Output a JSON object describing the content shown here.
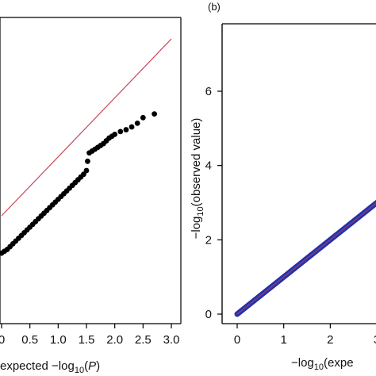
{
  "colors": {
    "background": "#ffffff",
    "axis": "#000000",
    "points_a": "#000000",
    "reference_line_a": "#c8485a",
    "points_b": "#2233aa",
    "line_b": "#8a3a7a"
  },
  "chart_data": [
    {
      "type": "scatter",
      "panel": "(a)",
      "panel_label_visible": false,
      "xlabel_text": "expected −log",
      "xlabel_sub": "10",
      "xlabel_paren": "(",
      "xlabel_var": "P",
      "xlabel_close": ")",
      "ylabel": "",
      "xlim": [
        0,
        3.0
      ],
      "ylim": [
        0,
        3.3
      ],
      "x_ticks": [
        0,
        0.5,
        1.0,
        1.5,
        2.0,
        2.5,
        3.0
      ],
      "x_tick_labels": [
        "0",
        "0.5",
        "1.0",
        "1.5",
        "2.0",
        "2.5",
        "3.0"
      ],
      "reference_line": {
        "x": [
          0,
          3.0
        ],
        "y": [
          0,
          3.0
        ]
      },
      "series": [
        {
          "x": [
            0.0,
            0.05,
            0.1,
            0.15,
            0.2,
            0.25,
            0.3,
            0.35,
            0.4,
            0.45,
            0.5,
            0.55,
            0.6,
            0.65,
            0.7,
            0.75,
            0.8,
            0.85,
            0.9,
            0.95,
            1.0,
            1.05,
            1.1,
            1.15,
            1.2,
            1.25,
            1.3,
            1.35,
            1.4,
            1.45,
            1.5,
            1.52,
            1.55,
            1.6,
            1.65,
            1.7,
            1.75,
            1.8,
            1.85,
            1.9,
            1.95,
            2.0,
            2.1,
            2.2,
            2.3,
            2.4,
            2.5,
            2.7
          ],
          "y": [
            0.76,
            0.78,
            0.8,
            0.83,
            0.86,
            0.89,
            0.92,
            0.95,
            0.98,
            1.01,
            1.04,
            1.07,
            1.1,
            1.13,
            1.16,
            1.19,
            1.22,
            1.25,
            1.28,
            1.31,
            1.34,
            1.37,
            1.4,
            1.43,
            1.46,
            1.49,
            1.52,
            1.55,
            1.58,
            1.61,
            1.65,
            1.75,
            1.84,
            1.86,
            1.88,
            1.9,
            1.92,
            1.94,
            1.97,
            2.0,
            2.02,
            2.04,
            2.07,
            2.09,
            2.12,
            2.16,
            2.22,
            2.26
          ]
        }
      ]
    },
    {
      "type": "scatter",
      "panel": "(b)",
      "panel_label_visible": true,
      "ylabel_text": "−log",
      "ylabel_sub": "10",
      "ylabel_rest": "(observed value)",
      "xlabel_text": "−log",
      "xlabel_sub": "10",
      "xlabel_rest": "(expe",
      "xlim": [
        0,
        3.5
      ],
      "ylim": [
        0,
        7
      ],
      "x_ticks": [
        0,
        1,
        2,
        3
      ],
      "x_tick_labels": [
        "0",
        "1",
        "2",
        "3"
      ],
      "y_ticks": [
        0,
        2,
        4,
        6
      ],
      "y_tick_labels": [
        "0",
        "2",
        "4",
        "6"
      ],
      "series": [
        {
          "x_range": [
            0,
            3.6
          ],
          "relation": "y = x"
        }
      ]
    }
  ]
}
